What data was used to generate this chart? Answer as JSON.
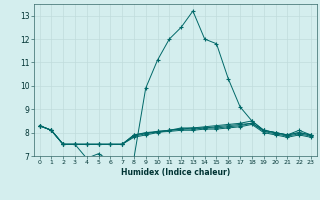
{
  "xlabel": "Humidex (Indice chaleur)",
  "background_color": "#d4eeee",
  "grid_color": "#c0dcdc",
  "line_color": "#006868",
  "x_values": [
    0,
    1,
    2,
    3,
    4,
    5,
    6,
    7,
    8,
    9,
    10,
    11,
    12,
    13,
    14,
    15,
    16,
    17,
    18,
    19,
    20,
    21,
    22,
    23
  ],
  "series": [
    [
      8.3,
      8.1,
      7.5,
      7.5,
      6.9,
      7.1,
      6.8,
      6.8,
      6.9,
      9.9,
      11.1,
      12.0,
      12.5,
      13.2,
      12.0,
      11.8,
      10.3,
      9.1,
      8.5,
      8.1,
      8.0,
      7.9,
      8.1,
      7.9
    ],
    [
      8.3,
      8.1,
      7.5,
      7.5,
      7.5,
      7.5,
      7.5,
      7.5,
      7.8,
      7.9,
      8.0,
      8.1,
      8.2,
      8.2,
      8.25,
      8.3,
      8.35,
      8.4,
      8.5,
      8.1,
      8.0,
      7.9,
      8.0,
      7.9
    ],
    [
      8.3,
      8.1,
      7.5,
      7.5,
      7.5,
      7.5,
      7.5,
      7.5,
      7.85,
      7.95,
      8.05,
      8.1,
      8.15,
      8.2,
      8.2,
      8.25,
      8.3,
      8.35,
      8.4,
      8.1,
      8.0,
      7.9,
      8.0,
      7.9
    ],
    [
      8.3,
      8.1,
      7.5,
      7.5,
      7.5,
      7.5,
      7.5,
      7.5,
      7.9,
      8.0,
      8.05,
      8.1,
      8.15,
      8.15,
      8.2,
      8.2,
      8.25,
      8.3,
      8.4,
      8.05,
      7.95,
      7.85,
      7.95,
      7.85
    ],
    [
      8.3,
      8.1,
      7.5,
      7.5,
      7.5,
      7.5,
      7.5,
      7.5,
      7.9,
      7.98,
      8.02,
      8.05,
      8.1,
      8.1,
      8.15,
      8.15,
      8.2,
      8.25,
      8.35,
      8.0,
      7.9,
      7.8,
      7.9,
      7.8
    ]
  ],
  "ylim": [
    7,
    13.5
  ],
  "yticks": [
    7,
    8,
    9,
    10,
    11,
    12,
    13
  ],
  "xticks": [
    0,
    1,
    2,
    3,
    4,
    5,
    6,
    7,
    8,
    9,
    10,
    11,
    12,
    13,
    14,
    15,
    16,
    17,
    18,
    19,
    20,
    21,
    22,
    23
  ],
  "marker": "+",
  "markersize": 3,
  "linewidth": 0.7
}
